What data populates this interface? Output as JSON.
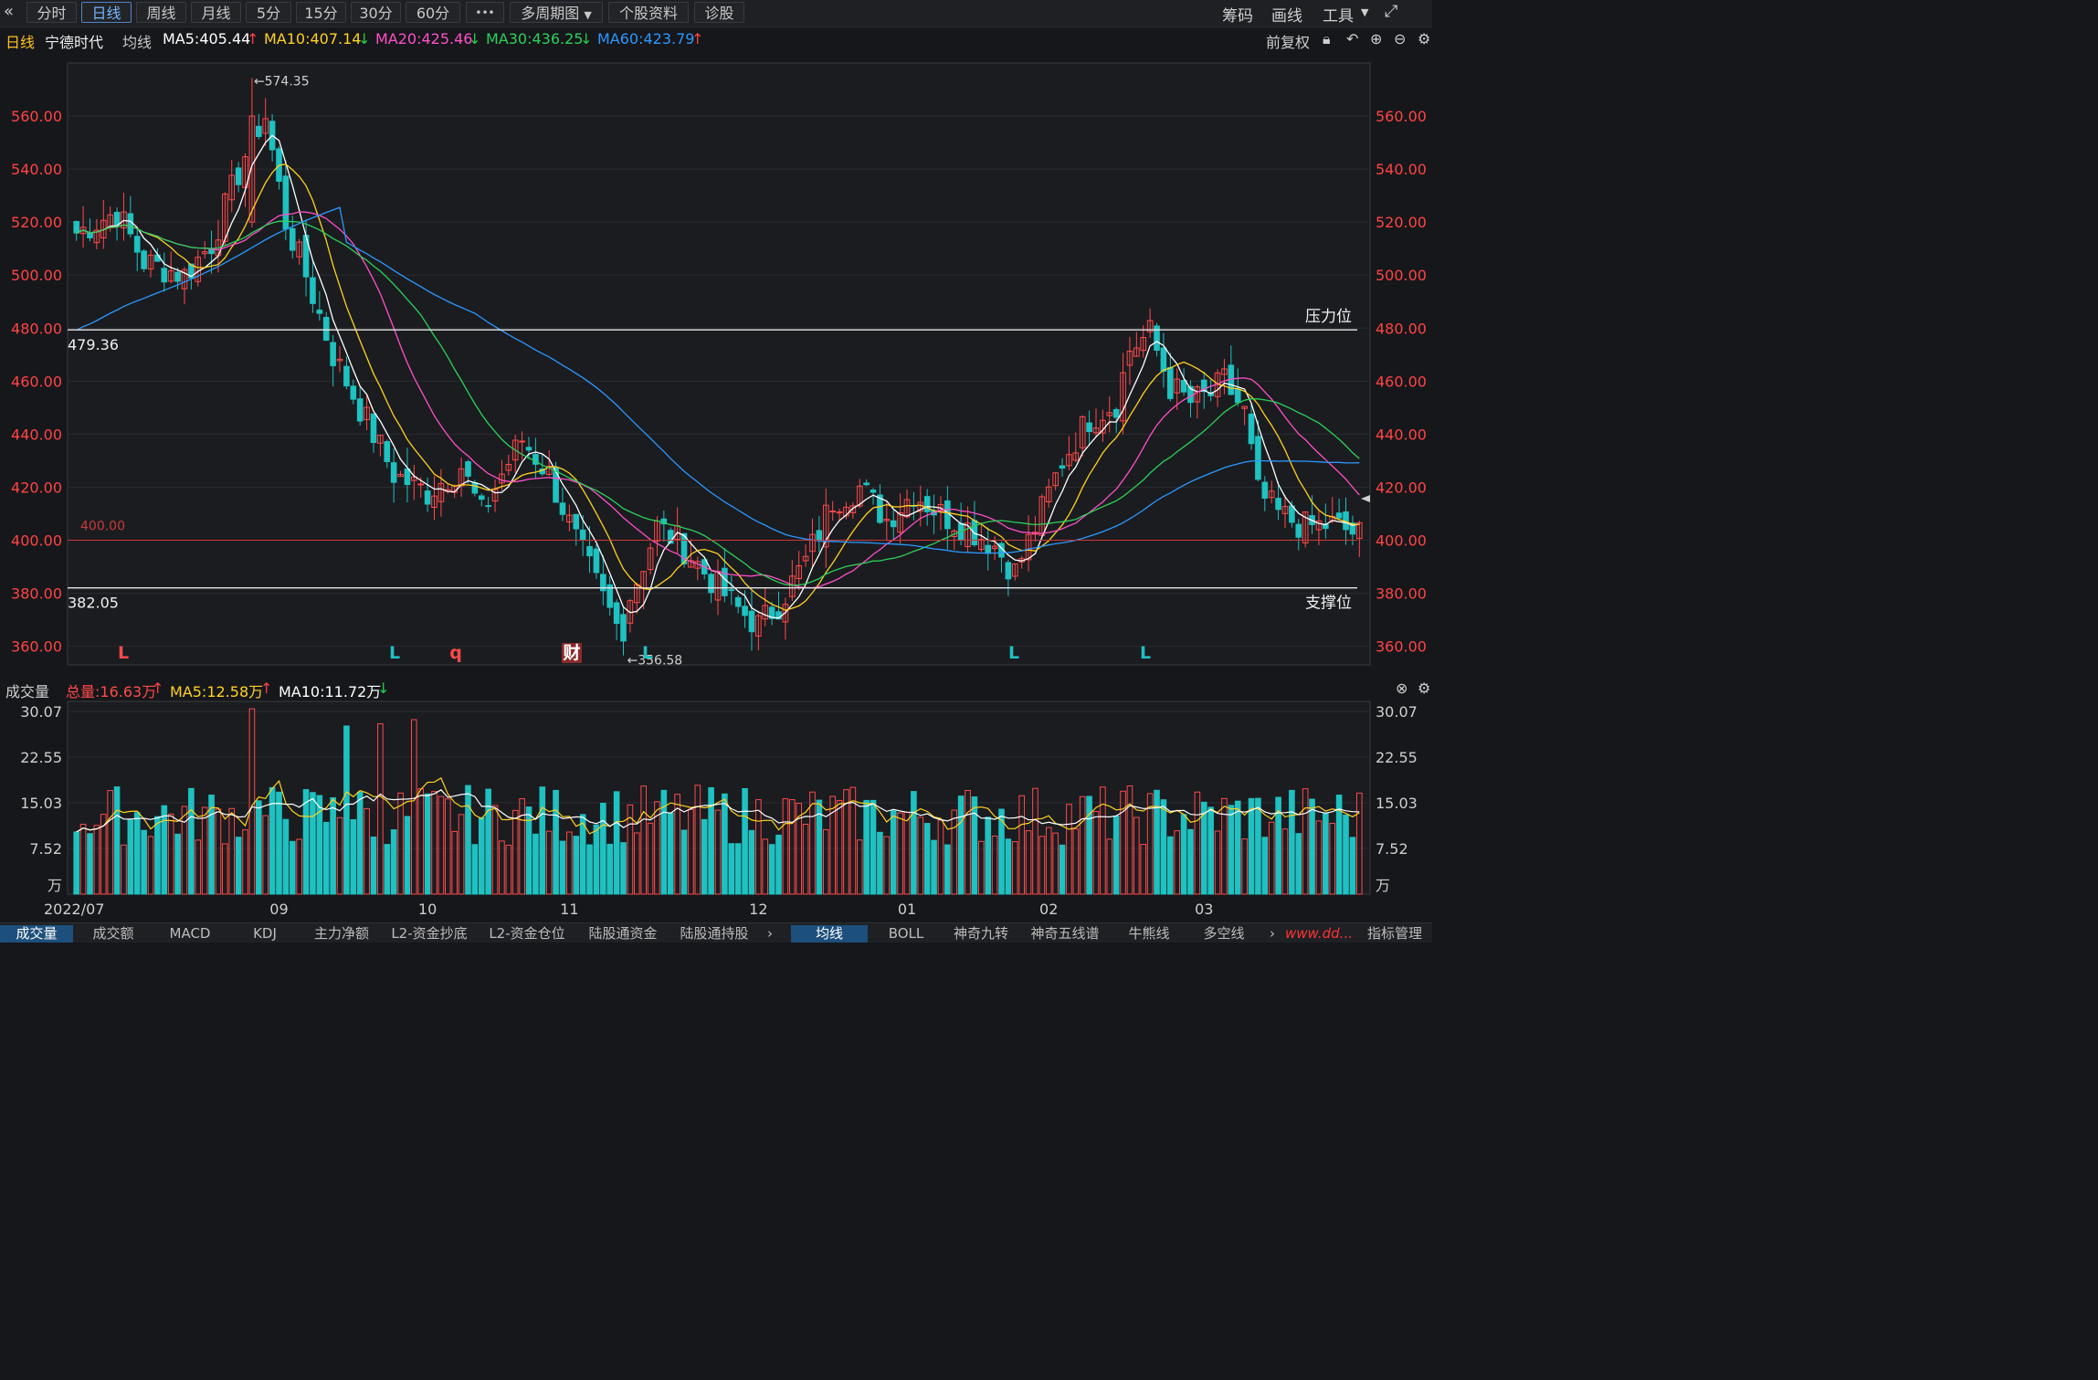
{
  "toolbar": {
    "back_icon": "double-chevron-left-icon",
    "periods": [
      "分时",
      "日线",
      "周线",
      "月线",
      "5分",
      "15分",
      "30分",
      "60分"
    ],
    "active_period": "日线",
    "more_label": "•••",
    "multi_period": "多周期图",
    "stock_info": "个股资料",
    "diagnose": "诊股",
    "right_items": [
      "筹码",
      "画线",
      "工具"
    ]
  },
  "info": {
    "period": "日线",
    "stock_name": "宁德时代",
    "ma_label": "均线",
    "ma5": "MA5:405.44",
    "ma10": "MA10:407.14",
    "ma20": "MA20:425.46",
    "ma30": "MA30:436.25",
    "ma60": "MA60:423.79",
    "adjust": "前复权"
  },
  "colors": {
    "up": "#ff4a4a",
    "down": "#1fc1c1",
    "ma5": "#ffffff",
    "ma10": "#ffd21f",
    "ma20": "#ff4fc8",
    "ma30": "#2bd15a",
    "ma60": "#2b98ff",
    "axis_text": "#ff4444",
    "grid": "#2a2b30"
  },
  "volume_info": {
    "title": "成交量",
    "total": "总量:16.63万",
    "ma5": "MA5:12.58万",
    "ma10": "MA10:11.72万"
  },
  "annotations": {
    "high_label": "←574.35",
    "low_label": "←356.58",
    "resistance_value": "479.36",
    "resistance_label": "压力位",
    "support_value": "382.05",
    "support_label": "支撑位",
    "ref_value": "400.00",
    "markers": [
      "L",
      "L",
      "q",
      "财",
      "L",
      "L",
      "L"
    ]
  },
  "bottom_tabs": {
    "left": [
      "成交量",
      "成交额",
      "MACD",
      "KDJ",
      "主力净额",
      "L2-资金抄底",
      "L2-资金仓位",
      "陆股通资金",
      "陆股通持股"
    ],
    "right": [
      "均线",
      "BOLL",
      "神奇九转",
      "神奇五线谱",
      "牛熊线",
      "多空线"
    ],
    "settings": "指标管理",
    "watermark": "www.dd..."
  },
  "chart_data": [
    {
      "type": "candlestick",
      "title": "宁德时代 日线",
      "x_month_labels": [
        "2022/07",
        "09",
        "10",
        "11",
        "12",
        "01",
        "02",
        "03"
      ],
      "y_ticks": [
        360,
        380,
        400,
        420,
        440,
        460,
        480,
        500,
        520,
        540,
        560
      ],
      "ylim": [
        353,
        580
      ],
      "high": 574.35,
      "low": 356.58,
      "resistance": 479.36,
      "support": 382.05,
      "reference": 400.0,
      "ma_latest": {
        "MA5": 405.44,
        "MA10": 407.14,
        "MA20": 425.46,
        "MA30": 436.25,
        "MA60": 423.79
      }
    },
    {
      "type": "bar",
      "title": "成交量",
      "unit": "万",
      "y_ticks": [
        7.52,
        15.03,
        22.55,
        30.07
      ],
      "ylim": [
        0,
        30.07
      ],
      "latest": {
        "total": 16.63,
        "MA5": 12.58,
        "MA10": 11.72
      }
    }
  ]
}
